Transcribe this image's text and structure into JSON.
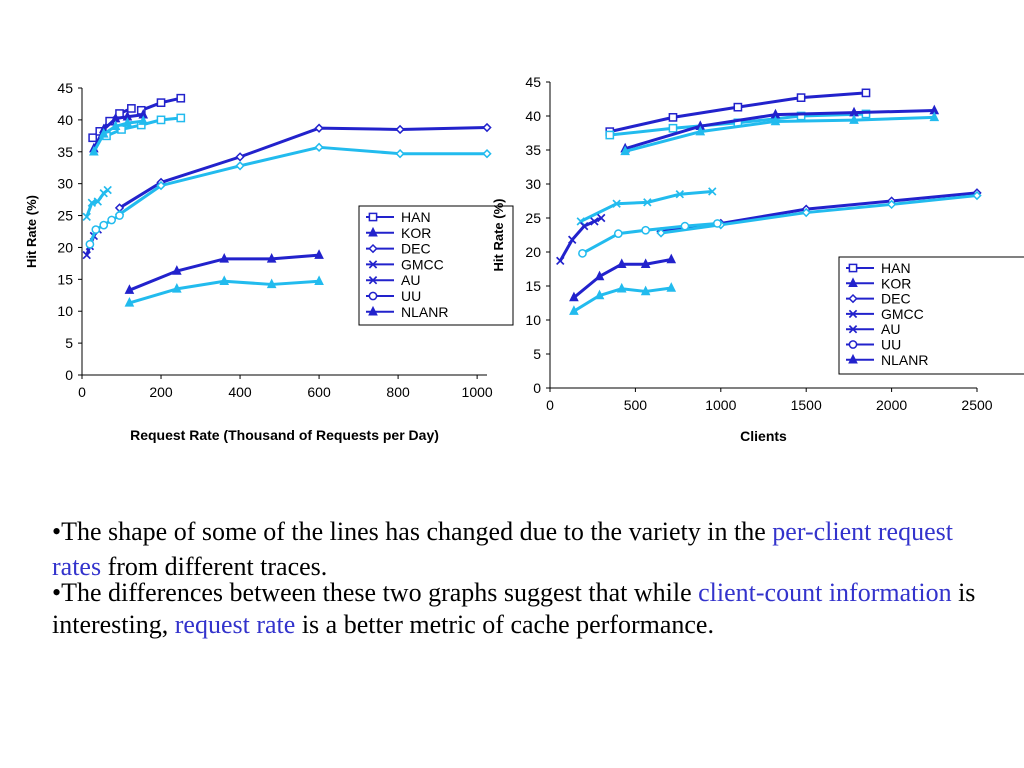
{
  "colors": {
    "dark": "#2222cc",
    "light": "#22bbee",
    "text": "#000000",
    "highlight": "#3333cc"
  },
  "chart_data": [
    {
      "type": "line",
      "title": "",
      "xlabel": "Request Rate (Thousand of Requests per Day)",
      "ylabel": "Hit Rate (%)",
      "xlim": [
        0,
        1025
      ],
      "ylim": [
        0,
        45
      ],
      "xticks": [
        "0",
        "200",
        "400",
        "600",
        "800",
        "1000"
      ],
      "yticks": [
        "0",
        "5",
        "10",
        "15",
        "20",
        "25",
        "30",
        "35",
        "40",
        "45"
      ],
      "grid": false,
      "legend_position": "right",
      "legend": [
        "HAN",
        "KOR",
        "DEC",
        "GMCC",
        "AU",
        "UU",
        "NLANR"
      ],
      "series": [
        {
          "name": "HAN",
          "marker": "square",
          "color": "dark",
          "x": [
            27,
            45,
            70,
            95,
            125
          ],
          "y": [
            37.2,
            38.2,
            39.8,
            41,
            41.8
          ]
        },
        {
          "name": "HAN",
          "marker": "square",
          "color": "light",
          "x": [
            62,
            100,
            150,
            200,
            250
          ],
          "y": [
            37.5,
            38.5,
            39.2,
            40,
            40.3
          ]
        },
        {
          "name": "HAN",
          "marker": "square",
          "color": "dark",
          "x": [
            150,
            200,
            250
          ],
          "y": [
            41.5,
            42.7,
            43.4
          ]
        },
        {
          "name": "KOR",
          "marker": "triangle",
          "color": "dark",
          "x": [
            30,
            55,
            85,
            115,
            155
          ],
          "y": [
            35.5,
            38.5,
            40.2,
            40.5,
            40.8
          ]
        },
        {
          "name": "KOR",
          "marker": "triangle",
          "color": "light",
          "x": [
            30,
            55,
            85,
            115,
            155
          ],
          "y": [
            35.0,
            37.8,
            39.0,
            39.5,
            39.8
          ]
        },
        {
          "name": "DEC",
          "marker": "diamond",
          "color": "dark",
          "x": [
            95,
            200,
            400,
            600,
            805,
            1025
          ],
          "y": [
            26.2,
            30.2,
            34.2,
            38.7,
            38.5,
            38.8
          ]
        },
        {
          "name": "DEC",
          "marker": "diamond",
          "color": "light",
          "x": [
            95,
            200,
            400,
            600,
            805,
            1025
          ],
          "y": [
            25.2,
            29.7,
            32.8,
            35.7,
            34.7,
            34.7
          ]
        },
        {
          "name": "GMCC",
          "marker": "x",
          "color": "light",
          "x": [
            12,
            25,
            40,
            55,
            65
          ],
          "y": [
            24.8,
            27.0,
            27.2,
            28.5,
            29.0
          ]
        },
        {
          "name": "AU",
          "marker": "x",
          "color": "dark",
          "x": [
            12,
            20,
            30,
            40
          ],
          "y": [
            18.8,
            20.2,
            21.8,
            22.8
          ]
        },
        {
          "name": "UU",
          "marker": "circle",
          "color": "light",
          "x": [
            20,
            35,
            55,
            75,
            95
          ],
          "y": [
            20.5,
            22.8,
            23.5,
            24.3,
            25.0
          ]
        },
        {
          "name": "NLANR",
          "marker": "triangle",
          "color": "dark",
          "x": [
            120,
            240,
            360,
            480,
            600
          ],
          "y": [
            13.3,
            16.3,
            18.2,
            18.2,
            18.8
          ]
        },
        {
          "name": "NLANR",
          "marker": "triangle",
          "color": "light",
          "x": [
            120,
            240,
            360,
            480,
            600
          ],
          "y": [
            11.3,
            13.5,
            14.7,
            14.2,
            14.7
          ]
        }
      ]
    },
    {
      "type": "line",
      "title": "",
      "xlabel": "Clients",
      "ylabel": "Hit Rate (%)",
      "xlim": [
        0,
        2500
      ],
      "ylim": [
        0,
        45
      ],
      "xticks": [
        "0",
        "500",
        "1000",
        "1500",
        "2000",
        "2500"
      ],
      "yticks": [
        "0",
        "5",
        "10",
        "15",
        "20",
        "25",
        "30",
        "35",
        "40",
        "45"
      ],
      "grid": false,
      "legend_position": "right",
      "legend": [
        "HAN",
        "KOR",
        "DEC",
        "GMCC",
        "AU",
        "UU",
        "NLANR"
      ],
      "series": [
        {
          "name": "HAN",
          "marker": "square",
          "color": "dark",
          "x": [
            350,
            720,
            1100,
            1470,
            1850
          ],
          "y": [
            37.7,
            39.8,
            41.3,
            42.7,
            43.4
          ]
        },
        {
          "name": "HAN",
          "marker": "square",
          "color": "light",
          "x": [
            350,
            720,
            1100,
            1470,
            1850
          ],
          "y": [
            37.2,
            38.2,
            39.0,
            40.0,
            40.3
          ]
        },
        {
          "name": "KOR",
          "marker": "triangle",
          "color": "dark",
          "x": [
            440,
            880,
            1320,
            1780,
            2250
          ],
          "y": [
            35.2,
            38.5,
            40.2,
            40.5,
            40.8
          ]
        },
        {
          "name": "KOR",
          "marker": "triangle",
          "color": "light",
          "x": [
            440,
            880,
            1320,
            1780,
            2250
          ],
          "y": [
            34.8,
            37.7,
            39.2,
            39.4,
            39.8
          ]
        },
        {
          "name": "DEC",
          "marker": "diamond",
          "color": "dark",
          "x": [
            650,
            1000,
            1500,
            2000,
            2500
          ],
          "y": [
            23.0,
            24.2,
            26.3,
            27.5,
            28.7
          ]
        },
        {
          "name": "DEC",
          "marker": "diamond",
          "color": "light",
          "x": [
            650,
            1000,
            1500,
            2000,
            2500
          ],
          "y": [
            22.8,
            24.0,
            25.8,
            27.0,
            28.3
          ]
        },
        {
          "name": "GMCC",
          "marker": "x",
          "color": "light",
          "x": [
            180,
            390,
            570,
            760,
            950
          ],
          "y": [
            24.5,
            27.1,
            27.3,
            28.5,
            28.9
          ]
        },
        {
          "name": "AU",
          "marker": "x",
          "color": "dark",
          "x": [
            60,
            130,
            200,
            260,
            300
          ],
          "y": [
            18.7,
            21.8,
            23.8,
            24.5,
            25.0
          ]
        },
        {
          "name": "UU",
          "marker": "circle",
          "color": "light",
          "x": [
            190,
            400,
            560,
            790,
            980
          ],
          "y": [
            19.8,
            22.7,
            23.2,
            23.8,
            24.2
          ]
        },
        {
          "name": "NLANR",
          "marker": "triangle",
          "color": "dark",
          "x": [
            140,
            290,
            420,
            560,
            710
          ],
          "y": [
            13.3,
            16.4,
            18.2,
            18.2,
            18.9
          ]
        },
        {
          "name": "NLANR",
          "marker": "triangle",
          "color": "light",
          "x": [
            140,
            290,
            420,
            560,
            710
          ],
          "y": [
            11.3,
            13.6,
            14.6,
            14.2,
            14.7
          ]
        }
      ]
    }
  ],
  "text": {
    "b1_pre": "•The shape of some of the lines has changed due to the variety in the ",
    "b1_hl": "per-client request rates",
    "b1_post": " from different traces.",
    "b2_pre": "•The differences between these two graphs suggest that while ",
    "b2_hl1": "client-count information",
    "b2_mid": " is interesting, ",
    "b2_hl2": "request rate",
    "b2_post": " is a better metric of cache performance."
  }
}
